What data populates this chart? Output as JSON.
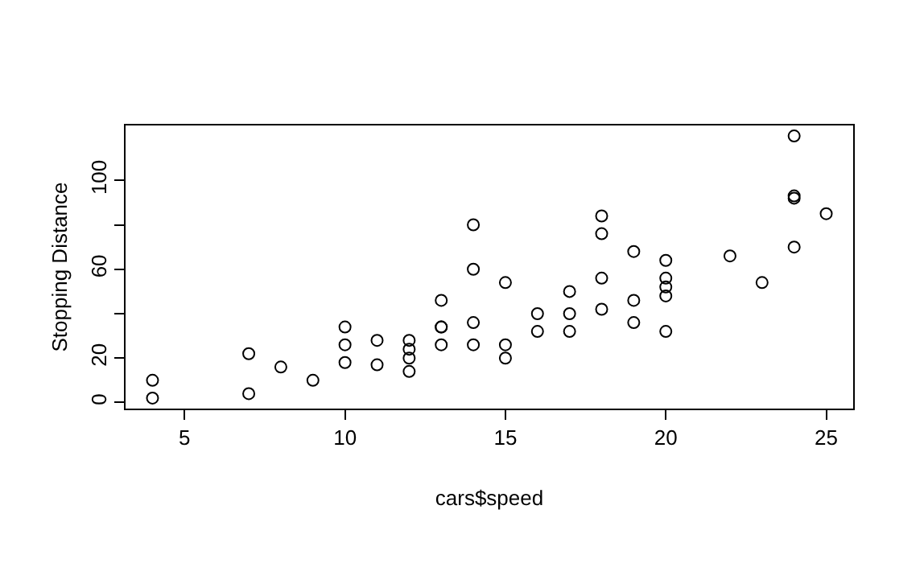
{
  "chart_data": {
    "type": "scatter",
    "xlabel": "cars$speed",
    "ylabel": "Stopping Distance",
    "x": [
      4,
      4,
      7,
      7,
      8,
      9,
      10,
      10,
      10,
      11,
      11,
      12,
      12,
      12,
      12,
      13,
      13,
      13,
      13,
      14,
      14,
      14,
      14,
      15,
      15,
      15,
      16,
      16,
      17,
      17,
      17,
      18,
      18,
      18,
      18,
      19,
      19,
      19,
      20,
      20,
      20,
      20,
      20,
      22,
      23,
      24,
      24,
      24,
      24,
      25
    ],
    "series": [
      {
        "color": "#000000",
        "values": [
          2,
          10,
          4,
          22,
          16,
          10,
          18,
          26,
          34,
          17,
          28,
          14,
          20,
          24,
          28,
          26,
          34,
          34,
          46,
          26,
          36,
          60,
          80,
          20,
          26,
          54,
          32,
          40,
          32,
          40,
          50,
          42,
          56,
          76,
          84,
          36,
          46,
          68,
          32,
          48,
          52,
          56,
          64,
          66,
          54,
          70,
          92,
          93,
          120,
          85
        ]
      }
    ],
    "xlim": [
      3.16,
      25.84
    ],
    "ylim": [
      -2.72,
      124.72
    ],
    "xticks": [
      5,
      10,
      15,
      20,
      25
    ],
    "yticks": [
      0,
      20,
      {
        "value": 40,
        "label": null
      },
      60,
      {
        "value": 80,
        "label": null
      },
      100
    ],
    "marker": "circle",
    "grid": false
  }
}
